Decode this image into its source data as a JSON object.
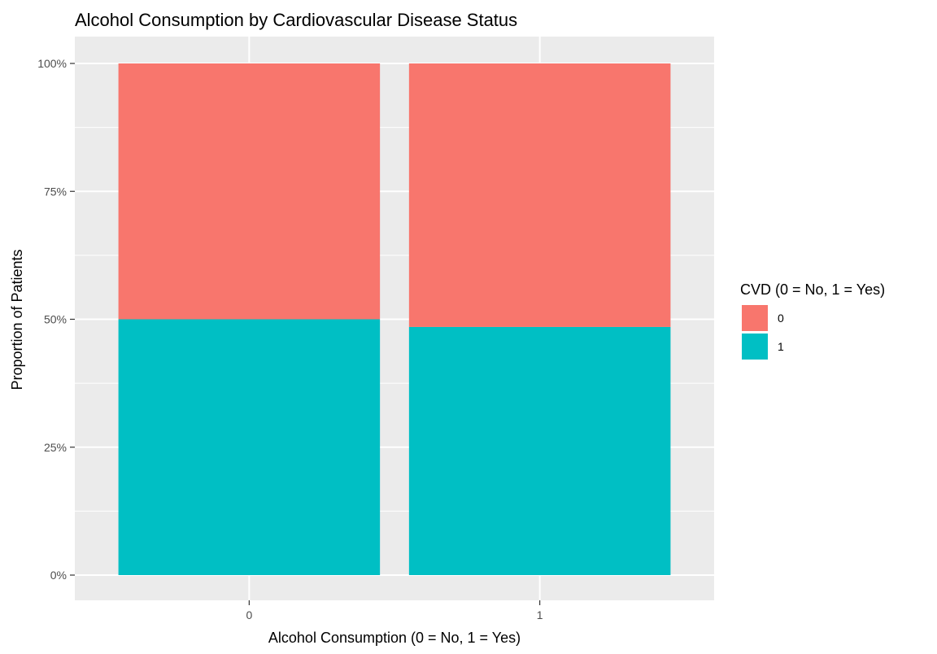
{
  "chart_data": {
    "type": "bar",
    "stacked": true,
    "title": "Alcohol Consumption by Cardiovascular Disease Status",
    "xlabel": "Alcohol Consumption (0 = No, 1 = Yes)",
    "ylabel": "Proportion of Patients",
    "categories": [
      "0",
      "1"
    ],
    "series": [
      {
        "name": "1",
        "color": "#00BFC4",
        "values": [
          0.5,
          0.485
        ]
      },
      {
        "name": "0",
        "color": "#F8766D",
        "values": [
          0.5,
          0.515
        ]
      }
    ],
    "ylim": [
      0,
      1
    ],
    "yticks": [
      0,
      0.25,
      0.5,
      0.75,
      1
    ],
    "ytick_labels": [
      "0%",
      "25%",
      "50%",
      "75%",
      "100%"
    ],
    "grid": true,
    "panel_background": "#EBEBEB",
    "grid_color": "#FFFFFF",
    "legend": {
      "title": "CVD (0 = No, 1 = Yes)",
      "placement": "right",
      "entries": [
        {
          "label": "0",
          "color": "#F8766D"
        },
        {
          "label": "1",
          "color": "#00BFC4"
        }
      ]
    }
  }
}
